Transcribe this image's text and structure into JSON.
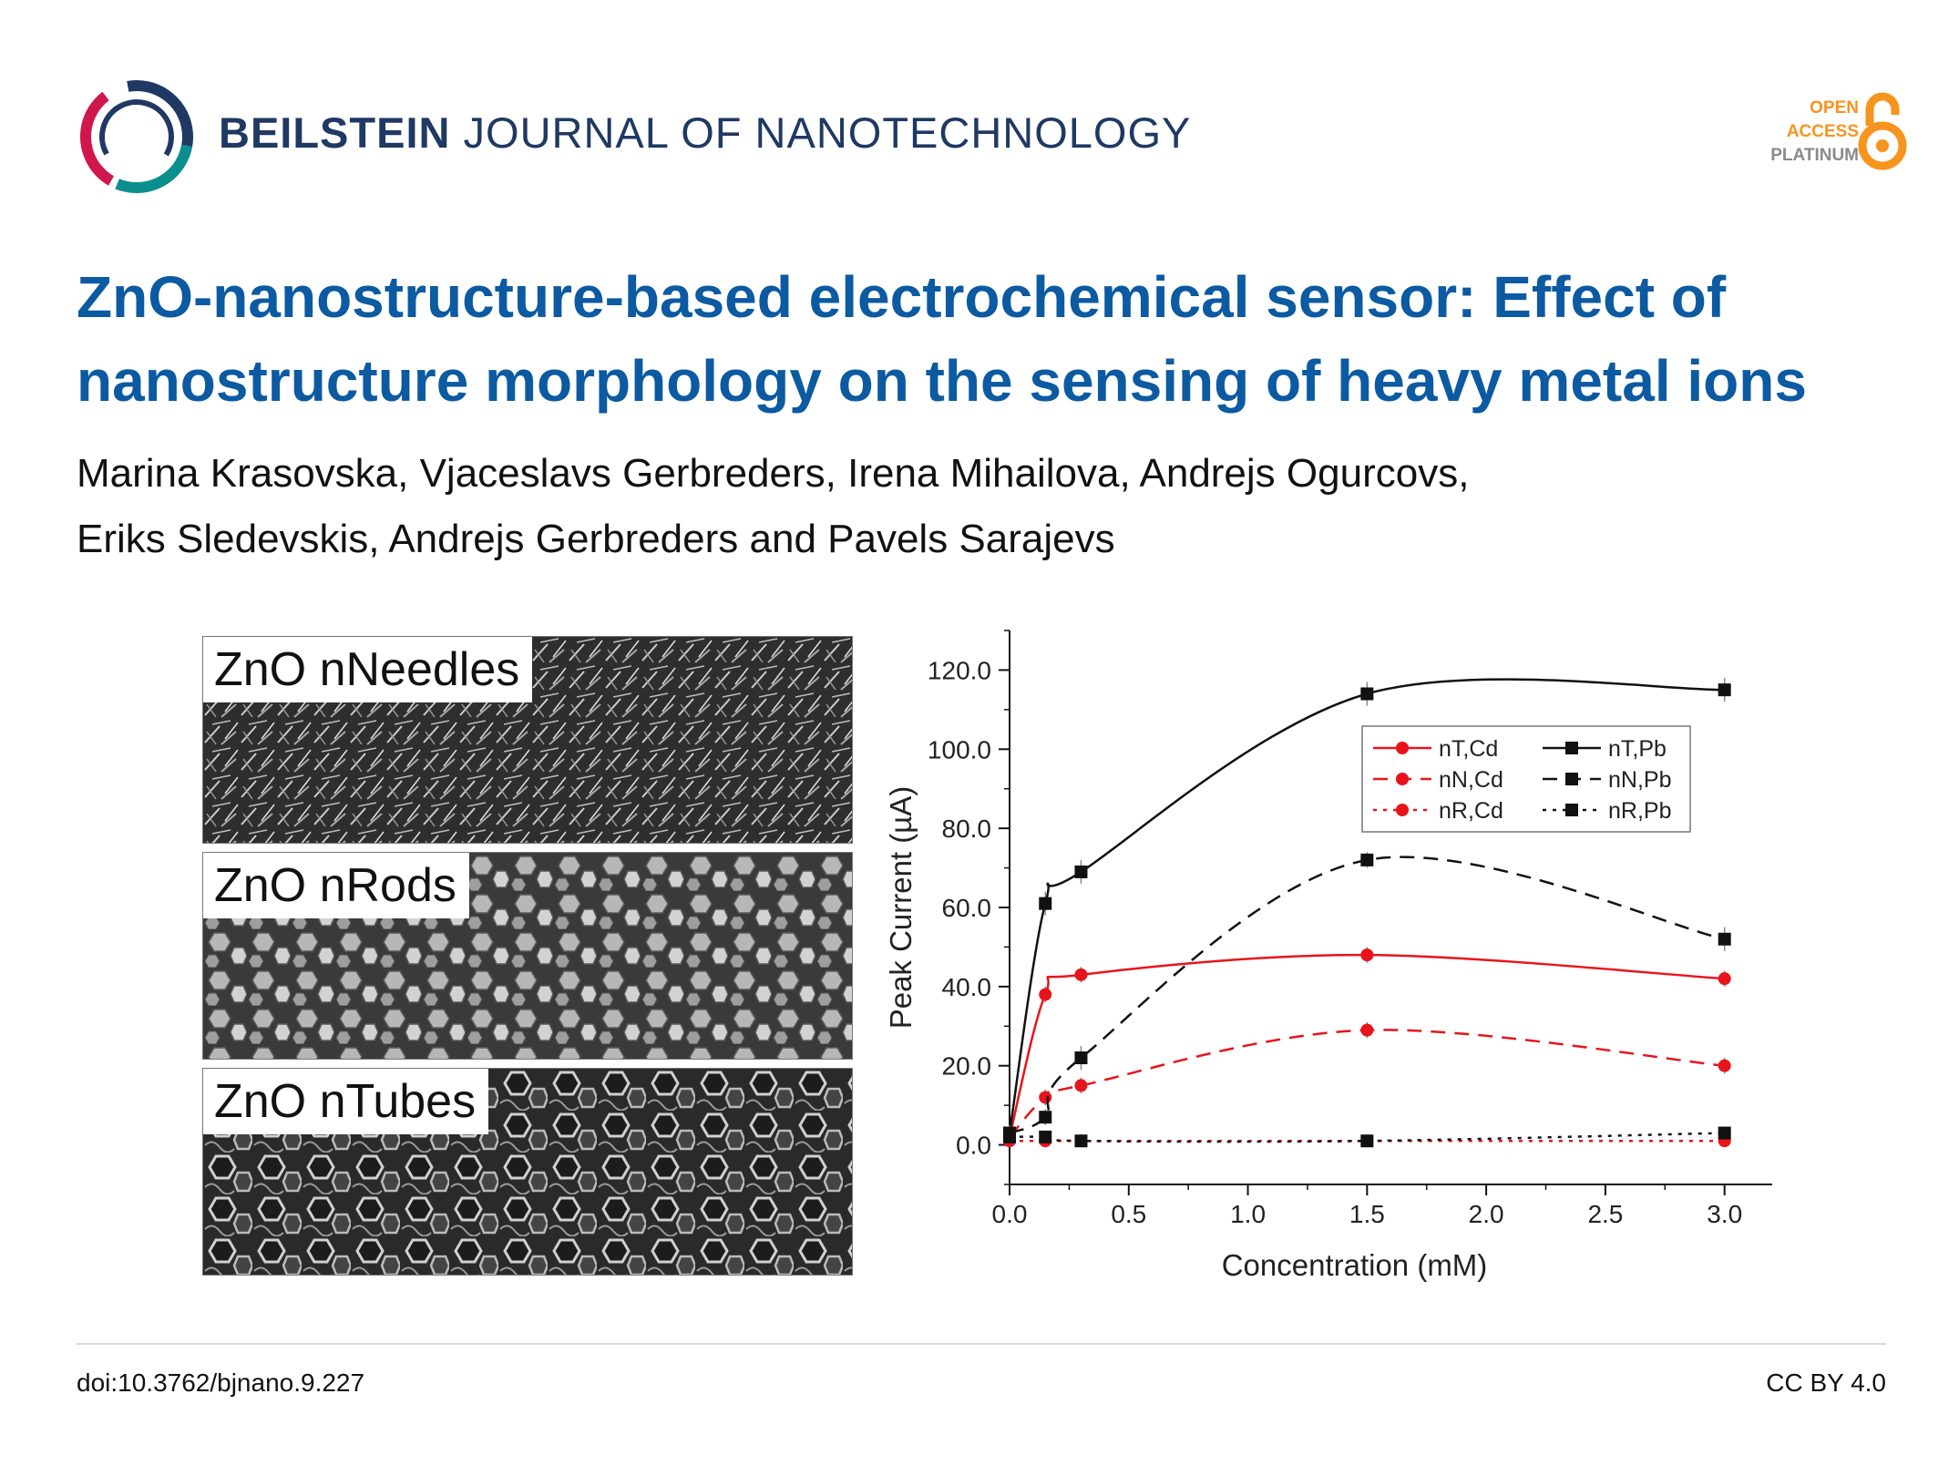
{
  "journal": {
    "name_bold": "BEILSTEIN",
    "name_rest": "JOURNAL OF NANOTECHNOLOGY"
  },
  "open_access": {
    "line1": "OPEN",
    "line2": "ACCESS",
    "line3": "PLATINUM"
  },
  "colors": {
    "title": "#0b5aa2",
    "journal": "#1f3864",
    "oa_orange": "#f7941d",
    "series_red": "#e8141b",
    "series_black": "#111111"
  },
  "title": "ZnO-nanostructure-based electrochemical sensor: Effect of nanostructure morphology on the sensing of heavy metal ions",
  "authors": {
    "line1": "Marina Krasovska, Vjaceslavs Gerbreders, Irena Mihailova, Andrejs Ogurcovs,",
    "line2": "Eriks Sledevskis, Andrejs Gerbreders and Pavels Sarajevs"
  },
  "micrographs": {
    "needles": "ZnO nNeedles",
    "rods": "ZnO nRods",
    "tubes": "ZnO nTubes"
  },
  "footer": {
    "doi": "doi:10.3762/bjnano.9.227",
    "license": "CC BY 4.0"
  },
  "chart_data": {
    "type": "line",
    "xlabel": "Concentration (mM)",
    "ylabel": "Peak Current (µA)",
    "xlim": [
      0,
      3.2
    ],
    "ylim": [
      -10,
      130
    ],
    "x_ticks": [
      0.0,
      0.5,
      1.0,
      1.5,
      2.0,
      2.5,
      3.0
    ],
    "x_tick_labels": [
      "0.0",
      "0.5",
      "1.0",
      "1.5",
      "2.0",
      "2.5",
      "3.0"
    ],
    "y_ticks": [
      0,
      20,
      40,
      60,
      80,
      100,
      120
    ],
    "y_tick_labels": [
      "0.0",
      "20.0",
      "40.0",
      "60.0",
      "80.0",
      "100.0",
      "120.0"
    ],
    "legend_position": "top-right",
    "series": [
      {
        "name": "nT,Cd",
        "color": "#e8141b",
        "marker": "circle",
        "dash": "solid",
        "x": [
          0,
          0.15,
          0.3,
          1.5,
          3.0
        ],
        "y": [
          2,
          38,
          43,
          48,
          42
        ],
        "err": [
          1,
          2,
          2,
          2,
          2
        ]
      },
      {
        "name": "nN,Cd",
        "color": "#e8141b",
        "marker": "circle",
        "dash": "dashed",
        "x": [
          0,
          0.15,
          0.3,
          1.5,
          3.0
        ],
        "y": [
          2,
          12,
          15,
          29,
          20
        ],
        "err": [
          1,
          2,
          2,
          2,
          2
        ]
      },
      {
        "name": "nR,Cd",
        "color": "#e8141b",
        "marker": "circle",
        "dash": "dotted",
        "x": [
          0,
          0.15,
          0.3,
          1.5,
          3.0
        ],
        "y": [
          1,
          1,
          1,
          1,
          1
        ],
        "err": [
          0.5,
          0.5,
          0.5,
          0.5,
          0.5
        ]
      },
      {
        "name": "nT,Pb",
        "color": "#111111",
        "marker": "square",
        "dash": "solid",
        "x": [
          0,
          0.15,
          0.3,
          1.5,
          3.0
        ],
        "y": [
          3,
          61,
          69,
          114,
          115
        ],
        "err": [
          2,
          3,
          3,
          3,
          3
        ]
      },
      {
        "name": "nN,Pb",
        "color": "#111111",
        "marker": "square",
        "dash": "dashed",
        "x": [
          0,
          0.15,
          0.3,
          1.5,
          3.0
        ],
        "y": [
          3,
          7,
          22,
          72,
          52
        ],
        "err": [
          1,
          2,
          3,
          2,
          3
        ]
      },
      {
        "name": "nR,Pb",
        "color": "#111111",
        "marker": "square",
        "dash": "dotted",
        "x": [
          0,
          0.15,
          0.3,
          1.5,
          3.0
        ],
        "y": [
          2,
          2,
          1,
          1,
          3
        ],
        "err": [
          1,
          1,
          1,
          1,
          1
        ]
      }
    ]
  }
}
